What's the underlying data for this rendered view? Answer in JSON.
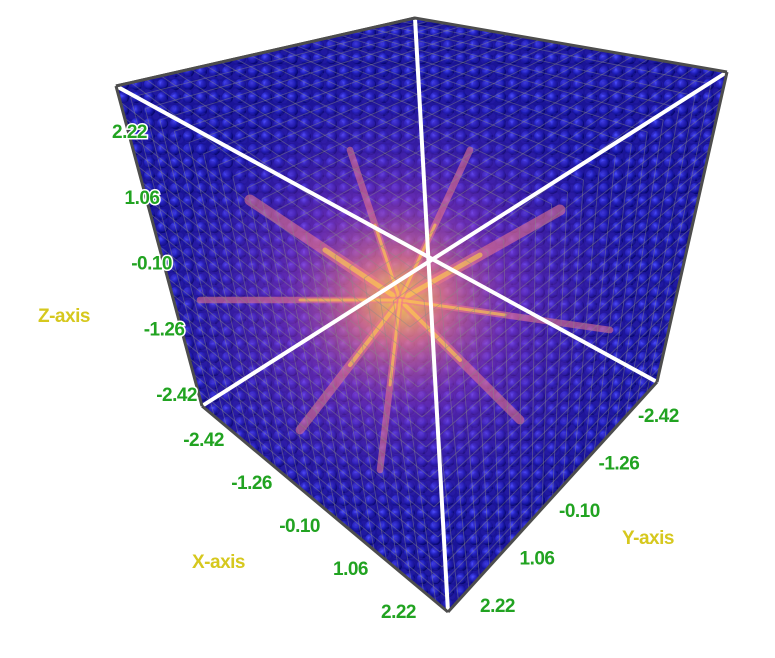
{
  "chart_data": {
    "type": "scatter",
    "subtype": "3d-volumetric-point-cloud",
    "title": "",
    "axes": {
      "x": {
        "label": "X-axis",
        "ticks": [
          "-2.42",
          "-1.26",
          "-0.10",
          "1.06",
          "2.22"
        ],
        "range": [
          -2.42,
          2.22
        ]
      },
      "y": {
        "label": "Y-axis",
        "ticks": [
          "-2.42",
          "-1.26",
          "-0.10",
          "1.06",
          "2.22"
        ],
        "range": [
          -2.42,
          2.22
        ]
      },
      "z": {
        "label": "Z-axis",
        "ticks": [
          "2.22",
          "1.06",
          "-0.10",
          "-1.26",
          "-2.42"
        ],
        "range": [
          -2.42,
          2.22
        ]
      }
    },
    "grid": true,
    "box": true,
    "colormap": [
      "#0b0b8f",
      "#3a1cb4",
      "#7a2cc8",
      "#c447c0",
      "#f07a8a",
      "#ffd24a"
    ],
    "value_description": "dense lattice of spheres colored by intensity, brightest along diagonal streaks through the cube center"
  },
  "colors": {
    "tick_label": "#21a321",
    "axis_title": "#d6c81e",
    "frame": "#4d4d4d",
    "grid": "#808080"
  }
}
